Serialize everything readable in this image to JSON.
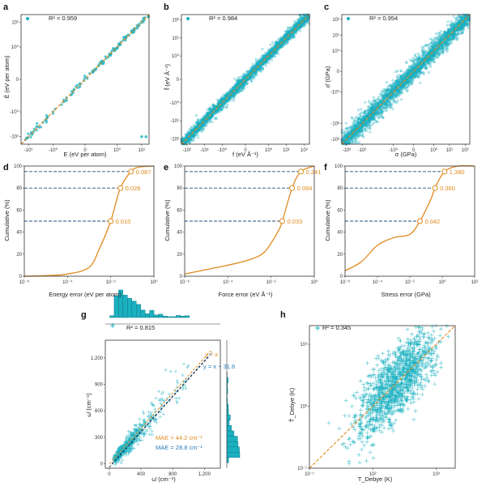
{
  "colors": {
    "teal": "#1ab0c0",
    "orange": "#e08a1e",
    "navy": "#1f4e79",
    "blue": "#2b7bb9",
    "axis": "#333333"
  },
  "chart_data": [
    {
      "panel": "a",
      "type": "scatter",
      "xlabel": "E (eV per atom)",
      "ylabel": "Ê (eV per atom)",
      "x_ticks": [
        "-10¹",
        "-10⁰",
        "0",
        "10⁰",
        "10¹"
      ],
      "y_ticks": [
        "-10¹",
        "-10⁰",
        "0",
        "10⁰",
        "10¹"
      ],
      "xlim": [
        -20,
        20
      ],
      "ylim": [
        -20,
        20
      ],
      "scale": "symlog",
      "legend": "R² = 0.959",
      "legend_position": "top-left",
      "reference_line": "y = x",
      "outliers": [
        [
          10,
          -10
        ],
        [
          15,
          -10
        ]
      ]
    },
    {
      "panel": "b",
      "type": "scatter",
      "xlabel": "f (eV Å⁻¹)",
      "ylabel": "f̂ (eV Å⁻¹)",
      "x_ticks": [
        "-10²",
        "-10¹",
        "-10⁰",
        "0",
        "10⁰",
        "10¹",
        "10²"
      ],
      "y_ticks": [
        "-10²",
        "-10¹",
        "-10⁰",
        "0",
        "10⁰",
        "10¹",
        "10²"
      ],
      "xlim": [
        -200,
        200
      ],
      "ylim": [
        -200,
        200
      ],
      "scale": "symlog",
      "legend": "R² = 0.984",
      "legend_position": "top-left",
      "reference_line": "y = x"
    },
    {
      "panel": "c",
      "type": "scatter",
      "xlabel": "σ (GPa)",
      "ylabel": "σ̂ (GPa)",
      "x_ticks": [
        "-10³",
        "-10²",
        "-10⁰",
        "0",
        "10⁰",
        "10¹",
        "10²"
      ],
      "y_ticks": [
        "-10³",
        "-10²",
        "-10⁰",
        "0",
        "10⁰",
        "10¹",
        "10²"
      ],
      "xlim": [
        -2000,
        200
      ],
      "ylim": [
        -2000,
        200
      ],
      "scale": "symlog",
      "legend": "R² = 0.954",
      "legend_position": "top-left",
      "reference_line": "y = x"
    },
    {
      "panel": "d",
      "type": "line",
      "xlabel": "Energy error (eV per atom)",
      "ylabel": "Cumulative (%)",
      "x_ticks": [
        "10⁻⁶",
        "10⁻⁴",
        "10⁻²",
        "10⁰"
      ],
      "y_ticks": [
        "0",
        "20",
        "40",
        "60",
        "80",
        "100"
      ],
      "xlim": [
        1e-06,
        1
      ],
      "ylim": [
        0,
        100
      ],
      "xscale": "log",
      "curve_points": [
        [
          1e-06,
          0
        ],
        [
          1e-05,
          0.5
        ],
        [
          0.0001,
          2
        ],
        [
          0.001,
          8
        ],
        [
          0.003,
          25
        ],
        [
          0.01,
          50
        ],
        [
          0.028,
          80
        ],
        [
          0.087,
          95
        ],
        [
          0.2,
          99
        ],
        [
          1,
          100
        ]
      ],
      "markers": [
        {
          "y": 50,
          "x": 0.01,
          "label": "0.010"
        },
        {
          "y": 80,
          "x": 0.028,
          "label": "0.028"
        },
        {
          "y": 95,
          "x": 0.087,
          "label": "0.087"
        }
      ]
    },
    {
      "panel": "e",
      "type": "line",
      "xlabel": "Force error (eV Å⁻¹)",
      "ylabel": "Cumulative (%)",
      "x_ticks": [
        "10⁻⁶",
        "10⁻⁴",
        "10⁻²",
        "10⁰"
      ],
      "y_ticks": [
        "0",
        "20",
        "40",
        "60",
        "80",
        "100"
      ],
      "xlim": [
        1e-06,
        1
      ],
      "ylim": [
        0,
        100
      ],
      "xscale": "log",
      "curve_points": [
        [
          1e-06,
          2
        ],
        [
          1e-05,
          6
        ],
        [
          0.0001,
          10
        ],
        [
          0.001,
          15
        ],
        [
          0.005,
          22
        ],
        [
          0.02,
          40
        ],
        [
          0.033,
          50
        ],
        [
          0.094,
          80
        ],
        [
          0.241,
          95
        ],
        [
          1,
          100
        ]
      ],
      "markers": [
        {
          "y": 50,
          "x": 0.033,
          "label": "0.033"
        },
        {
          "y": 80,
          "x": 0.094,
          "label": "0.094"
        },
        {
          "y": 95,
          "x": 0.241,
          "label": "0.241"
        }
      ]
    },
    {
      "panel": "f",
      "type": "line",
      "xlabel": "Stress error (GPa)",
      "ylabel": "Cumulative (%)",
      "x_ticks": [
        "10⁻⁶",
        "10⁻⁴",
        "10⁻²",
        "10⁰",
        "10²"
      ],
      "y_ticks": [
        "0",
        "20",
        "40",
        "60",
        "80",
        "100"
      ],
      "xlim": [
        1e-06,
        100
      ],
      "ylim": [
        0,
        100
      ],
      "xscale": "log",
      "curve_points": [
        [
          1e-06,
          5
        ],
        [
          1e-05,
          13
        ],
        [
          0.0001,
          28
        ],
        [
          0.001,
          35
        ],
        [
          0.01,
          38
        ],
        [
          0.042,
          50
        ],
        [
          0.2,
          70
        ],
        [
          0.36,
          80
        ],
        [
          1.38,
          95
        ],
        [
          10,
          100
        ],
        [
          100,
          100
        ]
      ],
      "markers": [
        {
          "y": 50,
          "x": 0.042,
          "label": "0.042"
        },
        {
          "y": 80,
          "x": 0.36,
          "label": "0.360"
        },
        {
          "y": 95,
          "x": 1.38,
          "label": "1.380"
        }
      ]
    },
    {
      "panel": "g",
      "type": "scatter",
      "xlabel": "ω̄ (cm⁻¹)",
      "ylabel": "ω̂ (cm⁻¹)",
      "x_ticks": [
        "0",
        "400",
        "800",
        "1,200"
      ],
      "y_ticks": [
        "0",
        "300",
        "600",
        "900",
        "1,200"
      ],
      "xlim": [
        -50,
        1400
      ],
      "ylim": [
        -50,
        1400
      ],
      "legend": "R² = 0.815",
      "legend_position": "top-left",
      "lines": [
        {
          "label": "y = x",
          "color": "orange"
        },
        {
          "label": "y = x − 31.6",
          "color": "blue"
        }
      ],
      "annotations": [
        "MAE = 44.2 cm⁻¹",
        "MAE = 28.8 cm⁻¹"
      ],
      "marginal_histograms": [
        "top",
        "right"
      ]
    },
    {
      "panel": "h",
      "type": "scatter",
      "xlabel": "T_Debye (K)",
      "ylabel": "T̂_Debye (K)",
      "x_ticks": [
        "10⁻¹",
        "10²",
        "10³"
      ],
      "y_ticks": [
        "10⁻¹",
        "10²",
        "10³"
      ],
      "xlim": [
        10,
        2000
      ],
      "ylim": [
        10,
        2000
      ],
      "scale": "log",
      "legend": "R² = 0.345",
      "legend_position": "top-left",
      "reference_line": "y = x"
    }
  ],
  "panels": {
    "a": {
      "letter": "a",
      "legend": "R² = 0.959",
      "xlabel": "E (eV per atom)",
      "ylabel": "Ê (eV per atom)"
    },
    "b": {
      "letter": "b",
      "legend": "R² = 0.984",
      "xlabel": "f (eV Å⁻¹)",
      "ylabel": "f̂ (eV Å⁻¹)"
    },
    "c": {
      "letter": "c",
      "legend": "R² = 0.954",
      "xlabel": "σ (GPa)",
      "ylabel": "σ̂ (GPa)"
    },
    "d": {
      "letter": "d",
      "xlabel": "Energy error (eV per atom)",
      "ylabel": "Cumulative (%)"
    },
    "e": {
      "letter": "e",
      "xlabel": "Force error (eV Å⁻¹)",
      "ylabel": "Cumulative (%)"
    },
    "f": {
      "letter": "f",
      "xlabel": "Stress error (GPa)",
      "ylabel": "Cumulative (%)"
    },
    "g": {
      "letter": "g",
      "legend": "R² = 0.815",
      "xlabel": "ω̄ (cm⁻¹)",
      "ylabel": "ω̂ (cm⁻¹)",
      "line1": "y = x",
      "line2": "y = x − 31.6",
      "mae1": "MAE = 44.2 cm⁻¹",
      "mae2": "MAE = 28.8 cm⁻¹"
    },
    "h": {
      "letter": "h",
      "legend": "R² = 0.345",
      "xlabel": "T_Debye (K)",
      "ylabel": "T̂_Debye (K)"
    }
  }
}
